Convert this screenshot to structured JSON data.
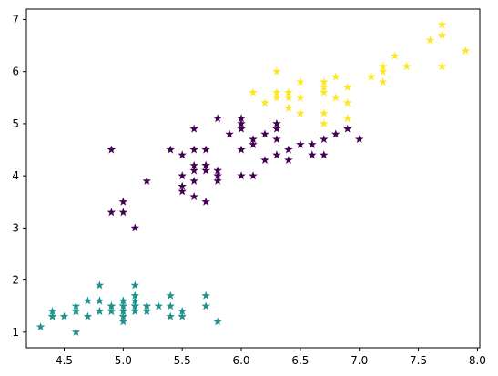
{
  "chart_data": {
    "type": "scatter",
    "title": "",
    "xlabel": "",
    "ylabel": "",
    "xlim": [
      4.18,
      8.02
    ],
    "ylim": [
      0.7,
      7.2
    ],
    "xticks": [
      4.5,
      5.0,
      5.5,
      6.0,
      6.5,
      7.0,
      7.5,
      8.0
    ],
    "xtick_labels": [
      "4.5",
      "5.0",
      "5.5",
      "6.0",
      "6.5",
      "7.0",
      "7.5",
      "8.0"
    ],
    "yticks": [
      1,
      2,
      3,
      4,
      5,
      6,
      7
    ],
    "ytick_labels": [
      "1",
      "2",
      "3",
      "4",
      "5",
      "6",
      "7"
    ],
    "grid": false,
    "marker": "star",
    "series": [
      {
        "color": "#21918c",
        "points": [
          [
            4.3,
            1.1
          ],
          [
            4.4,
            1.4
          ],
          [
            4.4,
            1.3
          ],
          [
            4.4,
            1.3
          ],
          [
            4.5,
            1.3
          ],
          [
            4.6,
            1.4
          ],
          [
            4.6,
            1.0
          ],
          [
            4.6,
            1.5
          ],
          [
            4.6,
            1.4
          ],
          [
            4.7,
            1.3
          ],
          [
            4.7,
            1.6
          ],
          [
            4.8,
            1.4
          ],
          [
            4.8,
            1.6
          ],
          [
            4.8,
            1.6
          ],
          [
            4.8,
            1.9
          ],
          [
            4.8,
            1.4
          ],
          [
            4.9,
            1.4
          ],
          [
            4.9,
            1.5
          ],
          [
            4.9,
            1.5
          ],
          [
            4.9,
            1.4
          ],
          [
            5.0,
            1.4
          ],
          [
            5.0,
            1.5
          ],
          [
            5.0,
            1.6
          ],
          [
            5.0,
            1.2
          ],
          [
            5.0,
            1.3
          ],
          [
            5.0,
            1.6
          ],
          [
            5.0,
            1.4
          ],
          [
            5.1,
            1.4
          ],
          [
            5.1,
            1.4
          ],
          [
            5.1,
            1.5
          ],
          [
            5.1,
            1.5
          ],
          [
            5.1,
            1.7
          ],
          [
            5.1,
            1.9
          ],
          [
            5.1,
            1.6
          ],
          [
            5.2,
            1.5
          ],
          [
            5.2,
            1.4
          ],
          [
            5.2,
            1.5
          ],
          [
            5.3,
            1.5
          ],
          [
            5.4,
            1.7
          ],
          [
            5.4,
            1.5
          ],
          [
            5.4,
            1.3
          ],
          [
            5.5,
            1.4
          ],
          [
            5.5,
            1.3
          ],
          [
            5.7,
            1.7
          ],
          [
            5.7,
            1.5
          ],
          [
            5.8,
            1.2
          ]
        ]
      },
      {
        "color": "#440154",
        "points": [
          [
            4.9,
            4.5
          ],
          [
            4.9,
            3.3
          ],
          [
            5.0,
            3.5
          ],
          [
            5.0,
            3.3
          ],
          [
            5.1,
            3.0
          ],
          [
            5.2,
            3.9
          ],
          [
            5.4,
            4.5
          ],
          [
            5.5,
            4.0
          ],
          [
            5.5,
            3.8
          ],
          [
            5.5,
            3.7
          ],
          [
            5.5,
            4.4
          ],
          [
            5.6,
            4.1
          ],
          [
            5.6,
            4.5
          ],
          [
            5.6,
            3.9
          ],
          [
            5.6,
            3.6
          ],
          [
            5.6,
            4.2
          ],
          [
            5.6,
            4.9
          ],
          [
            5.7,
            4.5
          ],
          [
            5.7,
            4.1
          ],
          [
            5.7,
            4.2
          ],
          [
            5.7,
            3.5
          ],
          [
            5.7,
            4.2
          ],
          [
            5.8,
            4.0
          ],
          [
            5.8,
            3.9
          ],
          [
            5.8,
            4.1
          ],
          [
            5.8,
            5.1
          ],
          [
            5.9,
            4.8
          ],
          [
            6.0,
            4.0
          ],
          [
            6.0,
            4.5
          ],
          [
            6.0,
            5.0
          ],
          [
            6.0,
            5.1
          ],
          [
            6.0,
            4.9
          ],
          [
            6.1,
            4.0
          ],
          [
            6.1,
            4.7
          ],
          [
            6.1,
            4.6
          ],
          [
            6.2,
            4.3
          ],
          [
            6.2,
            4.8
          ],
          [
            6.3,
            4.7
          ],
          [
            6.3,
            4.9
          ],
          [
            6.3,
            4.4
          ],
          [
            6.3,
            5.0
          ],
          [
            6.4,
            4.5
          ],
          [
            6.4,
            4.3
          ],
          [
            6.5,
            4.6
          ],
          [
            6.6,
            4.6
          ],
          [
            6.6,
            4.4
          ],
          [
            6.7,
            4.4
          ],
          [
            6.7,
            4.7
          ],
          [
            6.8,
            4.8
          ],
          [
            6.9,
            4.9
          ],
          [
            7.0,
            4.7
          ]
        ]
      },
      {
        "color": "#fde725",
        "points": [
          [
            6.1,
            5.6
          ],
          [
            6.2,
            5.4
          ],
          [
            6.3,
            5.6
          ],
          [
            6.3,
            5.5
          ],
          [
            6.3,
            6.0
          ],
          [
            6.4,
            5.3
          ],
          [
            6.4,
            5.6
          ],
          [
            6.4,
            5.5
          ],
          [
            6.5,
            5.2
          ],
          [
            6.5,
            5.5
          ],
          [
            6.5,
            5.8
          ],
          [
            6.7,
            5.8
          ],
          [
            6.7,
            5.7
          ],
          [
            6.7,
            5.2
          ],
          [
            6.7,
            5.0
          ],
          [
            6.7,
            5.6
          ],
          [
            6.8,
            5.5
          ],
          [
            6.8,
            5.9
          ],
          [
            6.9,
            5.7
          ],
          [
            6.9,
            5.4
          ],
          [
            6.9,
            5.1
          ],
          [
            7.1,
            5.9
          ],
          [
            7.2,
            6.1
          ],
          [
            7.2,
            6.0
          ],
          [
            7.2,
            5.8
          ],
          [
            7.3,
            6.3
          ],
          [
            7.4,
            6.1
          ],
          [
            7.6,
            6.6
          ],
          [
            7.7,
            6.7
          ],
          [
            7.7,
            6.9
          ],
          [
            7.7,
            6.1
          ],
          [
            7.9,
            6.4
          ]
        ]
      }
    ]
  }
}
